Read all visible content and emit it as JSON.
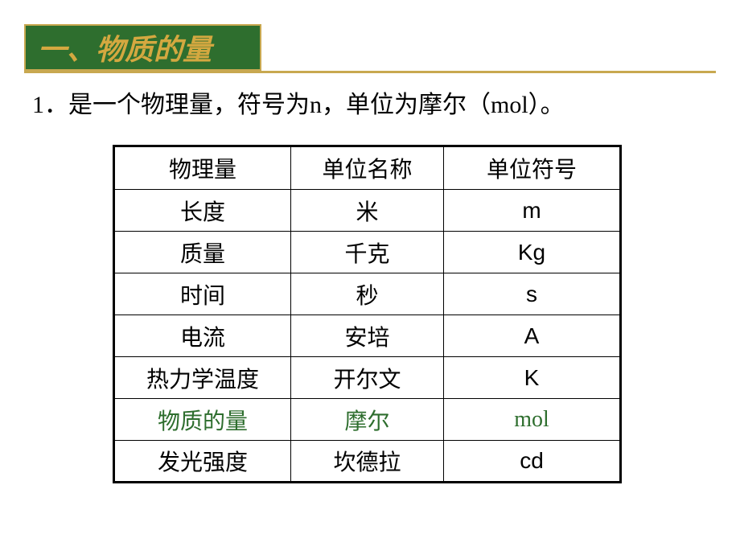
{
  "header": {
    "title": "一、物质的量",
    "title_color": "#d4a840",
    "banner_bg": "#2e6e2e",
    "banner_border": "#c8a850",
    "underline_color": "#c8a850"
  },
  "description": "1．是一个物理量，符号为n，单位为摩尔（mol）。",
  "table": {
    "border_color": "#000000",
    "text_color": "#000000",
    "highlight_color": "#2e6e2e",
    "font_size": 28,
    "columns": [
      "物理量",
      "单位名称",
      "单位符号"
    ],
    "rows": [
      {
        "qty": "长度",
        "unit_name": "米",
        "unit_symbol": "m",
        "highlight": false,
        "symbol_sans": true
      },
      {
        "qty": "质量",
        "unit_name": "千克",
        "unit_symbol": "Kg",
        "highlight": false,
        "symbol_sans": true
      },
      {
        "qty": "时间",
        "unit_name": "秒",
        "unit_symbol": "s",
        "highlight": false,
        "symbol_sans": true
      },
      {
        "qty": "电流",
        "unit_name": "安培",
        "unit_symbol": "A",
        "highlight": false,
        "symbol_sans": true
      },
      {
        "qty": "热力学温度",
        "unit_name": "开尔文",
        "unit_symbol": "K",
        "highlight": false,
        "symbol_sans": true
      },
      {
        "qty": "物质的量",
        "unit_name": "摩尔",
        "unit_symbol": "mol",
        "highlight": true,
        "symbol_sans": false
      },
      {
        "qty": "发光强度",
        "unit_name": "坎德拉",
        "unit_symbol": "cd",
        "highlight": false,
        "symbol_sans": true
      }
    ]
  }
}
